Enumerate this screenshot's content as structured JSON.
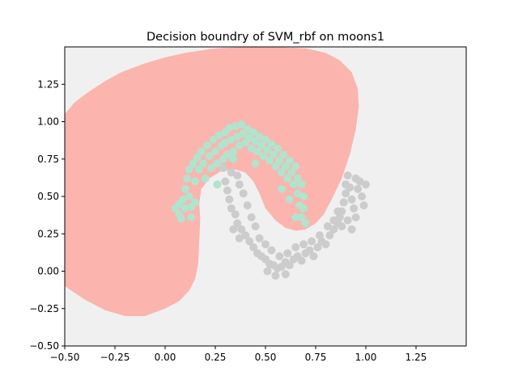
{
  "chart_data": {
    "type": "scatter",
    "title": "Decision boundry of SVM_rbf on moons1",
    "xlabel": "",
    "ylabel": "",
    "xlim": [
      -0.5,
      1.5
    ],
    "ylim": [
      -0.5,
      1.5
    ],
    "x_ticks": [
      "−0.50",
      "−0.25",
      "0.00",
      "0.25",
      "0.50",
      "0.75",
      "1.00",
      "1.25"
    ],
    "y_ticks": [
      "−0.50",
      "−0.25",
      "0.00",
      "0.25",
      "0.50",
      "0.75",
      "1.00",
      "1.25"
    ],
    "x_tick_values": [
      -0.5,
      -0.25,
      0.0,
      0.25,
      0.5,
      0.75,
      1.0,
      1.25
    ],
    "y_tick_values": [
      -0.5,
      -0.25,
      0.0,
      0.25,
      0.5,
      0.75,
      1.0,
      1.25
    ],
    "grid": false,
    "legend": false,
    "colors": {
      "background_region": "#f0f0f0",
      "decision_region": "#fbb4ae",
      "class_0": "#b3e2cd",
      "class_1": "#cccccc"
    },
    "decision_region_outline": [
      [
        -0.5,
        1.05
      ],
      [
        -0.45,
        1.13
      ],
      [
        -0.38,
        1.2
      ],
      [
        -0.3,
        1.27
      ],
      [
        -0.22,
        1.33
      ],
      [
        -0.1,
        1.39
      ],
      [
        0.0,
        1.43
      ],
      [
        0.1,
        1.46
      ],
      [
        0.25,
        1.49
      ],
      [
        0.4,
        1.5
      ],
      [
        0.55,
        1.5
      ],
      [
        0.7,
        1.49
      ],
      [
        0.8,
        1.46
      ],
      [
        0.87,
        1.41
      ],
      [
        0.93,
        1.33
      ],
      [
        0.96,
        1.22
      ],
      [
        0.965,
        1.1
      ],
      [
        0.95,
        0.95
      ],
      [
        0.92,
        0.78
      ],
      [
        0.88,
        0.62
      ],
      [
        0.83,
        0.48
      ],
      [
        0.79,
        0.38
      ],
      [
        0.75,
        0.32
      ],
      [
        0.7,
        0.28
      ],
      [
        0.65,
        0.27
      ],
      [
        0.6,
        0.29
      ],
      [
        0.55,
        0.34
      ],
      [
        0.5,
        0.42
      ],
      [
        0.47,
        0.52
      ],
      [
        0.44,
        0.6
      ],
      [
        0.4,
        0.66
      ],
      [
        0.35,
        0.68
      ],
      [
        0.28,
        0.67
      ],
      [
        0.22,
        0.62
      ],
      [
        0.18,
        0.55
      ],
      [
        0.17,
        0.45
      ],
      [
        0.175,
        0.35
      ],
      [
        0.17,
        0.2
      ],
      [
        0.165,
        0.05
      ],
      [
        0.15,
        -0.05
      ],
      [
        0.12,
        -0.13
      ],
      [
        0.07,
        -0.2
      ],
      [
        0.0,
        -0.25
      ],
      [
        -0.1,
        -0.3
      ],
      [
        -0.2,
        -0.3
      ],
      [
        -0.3,
        -0.26
      ],
      [
        -0.4,
        -0.19
      ],
      [
        -0.5,
        -0.1
      ]
    ],
    "series": [
      {
        "values": [
          [
            0.05,
            0.42
          ],
          [
            0.07,
            0.38
          ],
          [
            0.08,
            0.35
          ],
          [
            0.09,
            0.48
          ],
          [
            0.1,
            0.55
          ],
          [
            0.1,
            0.42
          ],
          [
            0.11,
            0.62
          ],
          [
            0.12,
            0.68
          ],
          [
            0.12,
            0.5
          ],
          [
            0.13,
            0.36
          ],
          [
            0.14,
            0.72
          ],
          [
            0.15,
            0.6
          ],
          [
            0.15,
            0.46
          ],
          [
            0.16,
            0.76
          ],
          [
            0.17,
            0.68
          ],
          [
            0.18,
            0.8
          ],
          [
            0.19,
            0.72
          ],
          [
            0.2,
            0.62
          ],
          [
            0.21,
            0.84
          ],
          [
            0.22,
            0.77
          ],
          [
            0.23,
            0.69
          ],
          [
            0.24,
            0.88
          ],
          [
            0.25,
            0.8
          ],
          [
            0.26,
            0.58
          ],
          [
            0.26,
            0.72
          ],
          [
            0.27,
            0.91
          ],
          [
            0.28,
            0.84
          ],
          [
            0.3,
            0.93
          ],
          [
            0.3,
            0.86
          ],
          [
            0.31,
            0.78
          ],
          [
            0.32,
            0.96
          ],
          [
            0.33,
            0.88
          ],
          [
            0.34,
            0.8
          ],
          [
            0.35,
            0.97
          ],
          [
            0.36,
            0.9
          ],
          [
            0.37,
            0.84
          ],
          [
            0.38,
            0.98
          ],
          [
            0.39,
            0.92
          ],
          [
            0.4,
            0.86
          ],
          [
            0.41,
            0.95
          ],
          [
            0.42,
            0.89
          ],
          [
            0.43,
            0.82
          ],
          [
            0.44,
            0.93
          ],
          [
            0.45,
            0.87
          ],
          [
            0.46,
            0.8
          ],
          [
            0.47,
            0.9
          ],
          [
            0.48,
            0.84
          ],
          [
            0.49,
            0.77
          ],
          [
            0.5,
            0.88
          ],
          [
            0.51,
            0.81
          ],
          [
            0.52,
            0.74
          ],
          [
            0.53,
            0.85
          ],
          [
            0.54,
            0.78
          ],
          [
            0.55,
            0.7
          ],
          [
            0.56,
            0.82
          ],
          [
            0.57,
            0.74
          ],
          [
            0.58,
            0.66
          ],
          [
            0.59,
            0.78
          ],
          [
            0.6,
            0.7
          ],
          [
            0.61,
            0.62
          ],
          [
            0.62,
            0.74
          ],
          [
            0.63,
            0.66
          ],
          [
            0.64,
            0.58
          ],
          [
            0.65,
            0.7
          ],
          [
            0.66,
            0.62
          ],
          [
            0.66,
            0.52
          ],
          [
            0.67,
            0.44
          ],
          [
            0.68,
            0.58
          ],
          [
            0.68,
            0.36
          ],
          [
            0.69,
            0.5
          ],
          [
            0.69,
            0.42
          ],
          [
            0.7,
            0.32
          ],
          [
            0.65,
            0.36
          ],
          [
            0.62,
            0.48
          ],
          [
            0.58,
            0.55
          ],
          [
            0.34,
            0.75
          ],
          [
            0.29,
            0.75
          ],
          [
            0.45,
            0.72
          ],
          [
            0.07,
            0.45
          ],
          [
            0.13,
            0.43
          ]
        ]
      },
      {
        "values": [
          [
            0.29,
            0.69
          ],
          [
            0.33,
            0.66
          ],
          [
            0.36,
            0.64
          ],
          [
            0.3,
            0.6
          ],
          [
            0.31,
            0.54
          ],
          [
            0.32,
            0.48
          ],
          [
            0.33,
            0.42
          ],
          [
            0.35,
            0.38
          ],
          [
            0.36,
            0.32
          ],
          [
            0.38,
            0.28
          ],
          [
            0.4,
            0.24
          ],
          [
            0.42,
            0.2
          ],
          [
            0.44,
            0.16
          ],
          [
            0.46,
            0.12
          ],
          [
            0.48,
            0.1
          ],
          [
            0.5,
            0.08
          ],
          [
            0.52,
            0.05
          ],
          [
            0.54,
            0.04
          ],
          [
            0.56,
            0.02
          ],
          [
            0.58,
            0.03
          ],
          [
            0.6,
            0.06
          ],
          [
            0.62,
            0.04
          ],
          [
            0.64,
            0.08
          ],
          [
            0.66,
            0.1
          ],
          [
            0.68,
            0.07
          ],
          [
            0.7,
            0.12
          ],
          [
            0.72,
            0.14
          ],
          [
            0.74,
            0.1
          ],
          [
            0.76,
            0.16
          ],
          [
            0.78,
            0.2
          ],
          [
            0.8,
            0.18
          ],
          [
            0.82,
            0.24
          ],
          [
            0.84,
            0.28
          ],
          [
            0.86,
            0.32
          ],
          [
            0.87,
            0.36
          ],
          [
            0.88,
            0.4
          ],
          [
            0.89,
            0.46
          ],
          [
            0.9,
            0.52
          ],
          [
            0.9,
            0.58
          ],
          [
            0.91,
            0.64
          ],
          [
            0.92,
            0.56
          ],
          [
            0.93,
            0.48
          ],
          [
            0.94,
            0.42
          ],
          [
            0.95,
            0.36
          ],
          [
            0.96,
            0.55
          ],
          [
            0.97,
            0.6
          ],
          [
            0.98,
            0.5
          ],
          [
            0.99,
            0.44
          ],
          [
            1.0,
            0.58
          ],
          [
            0.95,
            0.62
          ],
          [
            0.39,
            0.52
          ],
          [
            0.41,
            0.44
          ],
          [
            0.37,
            0.58
          ],
          [
            0.43,
            0.36
          ],
          [
            0.45,
            0.3
          ],
          [
            0.47,
            0.22
          ],
          [
            0.5,
            0.18
          ],
          [
            0.53,
            0.14
          ],
          [
            0.57,
            0.1
          ],
          [
            0.61,
            0.12
          ],
          [
            0.65,
            0.16
          ],
          [
            0.69,
            0.18
          ],
          [
            0.73,
            0.2
          ],
          [
            0.77,
            0.24
          ],
          [
            0.81,
            0.3
          ],
          [
            0.84,
            0.34
          ],
          [
            0.86,
            0.4
          ],
          [
            0.88,
            0.3
          ],
          [
            0.91,
            0.34
          ],
          [
            0.93,
            0.28
          ],
          [
            0.34,
            0.28
          ],
          [
            0.37,
            0.22
          ],
          [
            0.6,
            -0.02
          ],
          [
            0.55,
            -0.03
          ],
          [
            0.51,
            0.0
          ]
        ]
      }
    ]
  }
}
